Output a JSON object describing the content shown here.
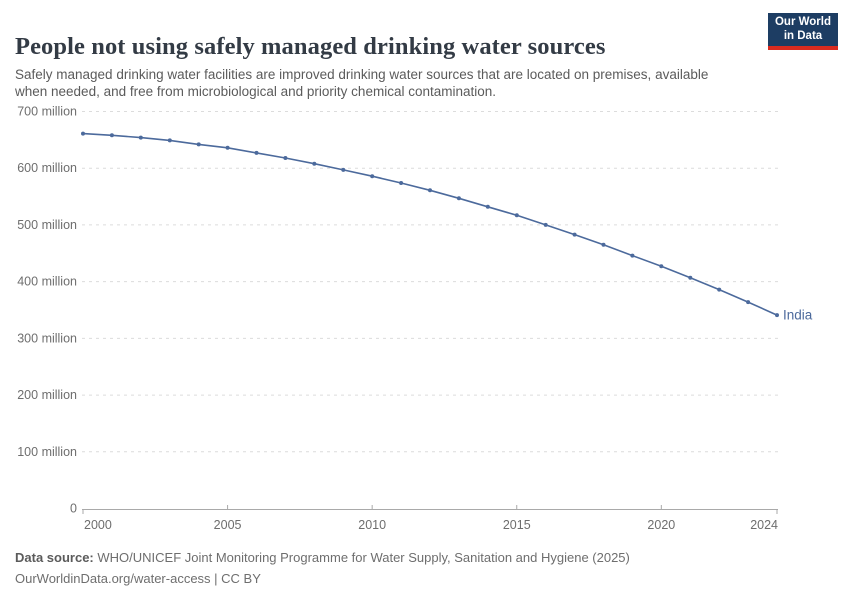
{
  "header": {
    "title": "People not using safely managed drinking water sources",
    "subtitle": "Safely managed drinking water facilities are improved drinking water sources that are located on premises, available when needed, and free from microbiological and priority chemical contamination."
  },
  "logo": {
    "line1": "Our World",
    "line2": "in Data",
    "bg_color": "#1d3d63",
    "bar_color": "#da2b1f"
  },
  "footer": {
    "source_label": "Data source:",
    "source_text": "WHO/UNICEF Joint Monitoring Programme for Water Supply, Sanitation and Hygiene (2025)",
    "link": "OurWorldinData.org/water-access",
    "separator": " | ",
    "license": "CC BY"
  },
  "chart_data": {
    "type": "line",
    "title": "People not using safely managed drinking water sources",
    "xlabel": "",
    "ylabel": "",
    "unit": "million people",
    "xlim": [
      2000,
      2024
    ],
    "ylim": [
      0,
      700
    ],
    "grid": "horizontal dashed gridlines on; legend off; series label at line end",
    "line_color": "#4c6a9c",
    "label_color": "#6e6e6e",
    "grid_color": "#dcdcdc",
    "axis_color": "#a9a9a9",
    "x_ticks": [
      {
        "year": 2000,
        "label": "2000"
      },
      {
        "year": 2005,
        "label": "2005"
      },
      {
        "year": 2010,
        "label": "2010"
      },
      {
        "year": 2015,
        "label": "2015"
      },
      {
        "year": 2020,
        "label": "2020"
      },
      {
        "year": 2024,
        "label": "2024"
      }
    ],
    "y_ticks": [
      {
        "value": 700,
        "label": "700 million"
      },
      {
        "value": 600,
        "label": "600 million"
      },
      {
        "value": 500,
        "label": "500 million"
      },
      {
        "value": 400,
        "label": "400 million"
      },
      {
        "value": 300,
        "label": "300 million"
      },
      {
        "value": 200,
        "label": "200 million"
      },
      {
        "value": 100,
        "label": "100 million"
      },
      {
        "value": 0,
        "label": "0"
      }
    ],
    "series": [
      {
        "name": "India",
        "x": [
          2000,
          2001,
          2002,
          2003,
          2004,
          2005,
          2006,
          2007,
          2008,
          2009,
          2010,
          2011,
          2012,
          2013,
          2014,
          2015,
          2016,
          2017,
          2018,
          2019,
          2020,
          2021,
          2022,
          2023,
          2024
        ],
        "values": [
          661,
          658,
          654,
          649,
          642,
          636,
          627,
          618,
          608,
          597,
          586,
          574,
          561,
          547,
          532,
          517,
          500,
          483,
          465,
          446,
          427,
          407,
          386,
          364,
          341
        ]
      }
    ]
  }
}
